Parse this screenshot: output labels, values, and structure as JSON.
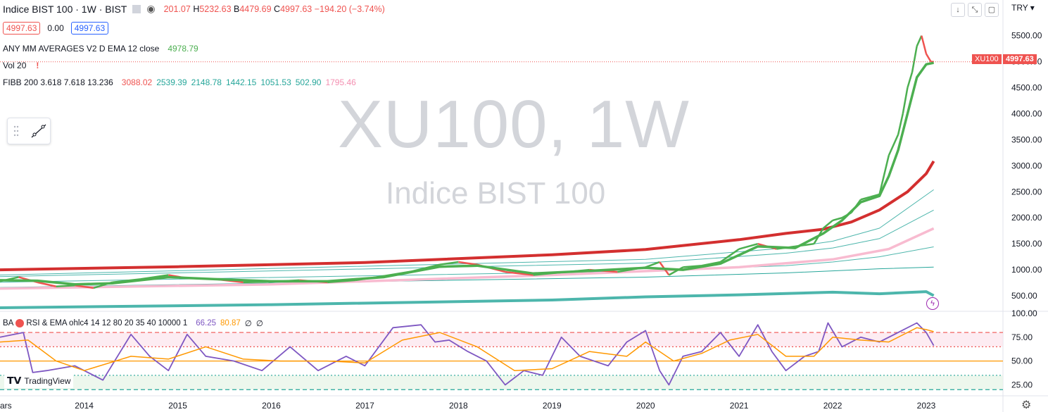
{
  "header": {
    "symbol": "Indice BIST 100 · 1W · BIST",
    "open": "201.07",
    "high_label": "H",
    "high": "5232.63",
    "low_label": "B",
    "low": "4479.69",
    "close_label": "C",
    "close": "4997.63",
    "change": "−194.20 (−3.74%)"
  },
  "price_row": {
    "bid": "4997.63",
    "spread": "0.00",
    "ask": "4997.63"
  },
  "indicators": {
    "ema_label": "ANY MM AVERAGES V2 D EMA 12 close",
    "ema_value": "4978.79",
    "vol_label": "Vol 20",
    "vol_warn": "!",
    "fib_label": "FIBB 200 3.618 7.618 13.236",
    "fib_values": [
      "3088.02",
      "2539.39",
      "2148.78",
      "1442.15",
      "1051.53",
      "502.90",
      "1795.46"
    ],
    "fib_colors": [
      "#ef5350",
      "#26a69a",
      "#26a69a",
      "#26a69a",
      "#26a69a",
      "#26a69a",
      "#f48fb1"
    ],
    "rsi_label": "BA",
    "rsi_name": "RSI & EMA ohlc4 14 12 80 20 35 40 10000 1",
    "rsi_value": "66.25",
    "rsi_ema": "80.87",
    "rsi_extra1": "∅",
    "rsi_extra2": "∅"
  },
  "watermark": {
    "symbol": "XU100, 1W",
    "name": "Indice BIST 100"
  },
  "currency": "TRY",
  "last_price_tag": {
    "symbol": "XU100",
    "value": "4997.63"
  },
  "branding": "TradingView",
  "colors": {
    "up": "#4caf50",
    "down": "#ef5350",
    "ema": "#4caf50",
    "sma200": "#d32f2f",
    "pink": "#f8bbd0",
    "teal": "#4db6ac"
  },
  "chart_data": {
    "type": "line",
    "price_axis": {
      "ticks": [
        500,
        1000,
        1500,
        2000,
        2500,
        3000,
        3500,
        4000,
        4500,
        5000,
        5500
      ],
      "tick_labels": [
        "500.00",
        "1000.00",
        "1500.00",
        "2000.00",
        "2500.00",
        "3000.00",
        "3500.00",
        "4000.00",
        "4500.00",
        "5000.00",
        "5500.00"
      ],
      "range": [
        230,
        5780
      ]
    },
    "rsi_axis": {
      "ticks": [
        25,
        50,
        75,
        100
      ],
      "tick_labels": [
        "25.00",
        "50.00",
        "75.00",
        "100.00"
      ],
      "range": [
        15,
        100
      ],
      "levels": [
        80,
        65,
        50,
        35,
        20
      ]
    },
    "x_axis": {
      "labels": [
        "ars",
        "2014",
        "2015",
        "2016",
        "2017",
        "2018",
        "2019",
        "2020",
        "2021",
        "2022",
        "2023"
      ],
      "values": [
        2013.0,
        2014.0,
        2015.0,
        2016.0,
        2017.0,
        2018.0,
        2019.0,
        2020.0,
        2021.0,
        2022.0,
        2023.0
      ],
      "range": [
        2013.1,
        2023.82
      ]
    },
    "price": {
      "x": [
        2013.1,
        2013.3,
        2013.5,
        2013.7,
        2013.9,
        2014.1,
        2014.3,
        2014.6,
        2014.9,
        2015.1,
        2015.4,
        2015.7,
        2016.0,
        2016.3,
        2016.6,
        2016.9,
        2017.2,
        2017.5,
        2017.8,
        2018.0,
        2018.2,
        2018.5,
        2018.8,
        2019.1,
        2019.4,
        2019.7,
        2020.0,
        2020.15,
        2020.25,
        2020.4,
        2020.6,
        2020.8,
        2021.0,
        2021.2,
        2021.4,
        2021.6,
        2021.8,
        2021.9,
        2022.0,
        2022.1,
        2022.2,
        2022.3,
        2022.4,
        2022.5,
        2022.6,
        2022.7,
        2022.75,
        2022.8,
        2022.85,
        2022.9,
        2022.95,
        2023.0,
        2023.05,
        2023.08
      ],
      "y": [
        780,
        860,
        760,
        680,
        700,
        650,
        760,
        820,
        900,
        840,
        820,
        760,
        770,
        800,
        760,
        800,
        880,
        970,
        1100,
        1150,
        1100,
        960,
        900,
        950,
        1000,
        960,
        1050,
        1150,
        900,
        1050,
        1080,
        1150,
        1400,
        1500,
        1400,
        1450,
        1500,
        1800,
        1950,
        2000,
        2100,
        2350,
        2400,
        2450,
        3200,
        3600,
        4000,
        4500,
        4800,
        5300,
        5500,
        5150,
        5000,
        4997.63
      ]
    },
    "ema12": {
      "x": [
        2013.1,
        2013.5,
        2013.9,
        2014.3,
        2014.9,
        2015.4,
        2016.0,
        2016.6,
        2017.2,
        2017.8,
        2018.2,
        2018.8,
        2019.4,
        2020.0,
        2020.4,
        2020.8,
        2021.2,
        2021.6,
        2021.9,
        2022.1,
        2022.3,
        2022.5,
        2022.6,
        2022.7,
        2022.8,
        2022.9,
        2023.0,
        2023.08
      ],
      "y": [
        800,
        790,
        720,
        740,
        860,
        820,
        780,
        780,
        860,
        1060,
        1080,
        930,
        980,
        1040,
        1000,
        1120,
        1450,
        1420,
        1700,
        1950,
        2300,
        2420,
        2800,
        3300,
        4000,
        4700,
        4950,
        4978.79
      ]
    },
    "sma200": {
      "x": [
        2013.1,
        2015.0,
        2017.0,
        2019.0,
        2020.0,
        2021.0,
        2021.5,
        2021.9,
        2022.2,
        2022.5,
        2022.8,
        2023.0,
        2023.08
      ],
      "y": [
        1000,
        1060,
        1140,
        1290,
        1390,
        1580,
        1700,
        1780,
        1920,
        2150,
        2500,
        2850,
        3088.02
      ]
    },
    "fib_bands": [
      {
        "name": "2539.39",
        "x": [
          2013.1,
          2020.0,
          2021.5,
          2022.0,
          2022.5,
          2023.08
        ],
        "y": [
          900,
          1200,
          1420,
          1550,
          1800,
          2539.39
        ]
      },
      {
        "name": "2148.78",
        "x": [
          2013.1,
          2020.0,
          2021.5,
          2022.0,
          2022.5,
          2023.08
        ],
        "y": [
          870,
          1130,
          1320,
          1420,
          1600,
          2148.78
        ]
      },
      {
        "name": "1442.15",
        "x": [
          2013.1,
          2020.0,
          2021.5,
          2022.0,
          2022.5,
          2023.08
        ],
        "y": [
          760,
          980,
          1080,
          1150,
          1250,
          1442.15
        ]
      },
      {
        "name": "1051.53",
        "x": [
          2013.1,
          2020.0,
          2021.5,
          2022.0,
          2022.5,
          2023.08
        ],
        "y": [
          660,
          860,
          940,
          980,
          1020,
          1051.53
        ]
      },
      {
        "name": "1795.46",
        "x": [
          2013.1,
          2016.0,
          2019.0,
          2021.0,
          2022.0,
          2022.6,
          2023.08
        ],
        "y": [
          640,
          720,
          900,
          1050,
          1200,
          1400,
          1795.46
        ]
      },
      {
        "name": "502.90",
        "x": [
          2013.1,
          2016.0,
          2019.0,
          2020.0,
          2021.0,
          2022.0,
          2022.5,
          2023.0,
          2023.08
        ],
        "y": [
          270,
          330,
          420,
          480,
          520,
          570,
          540,
          580,
          502.9
        ]
      }
    ],
    "rsi": {
      "x": [
        2013.1,
        2013.35,
        2013.45,
        2013.6,
        2013.9,
        2014.2,
        2014.5,
        2014.7,
        2014.9,
        2015.1,
        2015.3,
        2015.6,
        2015.9,
        2016.2,
        2016.5,
        2016.8,
        2017.0,
        2017.3,
        2017.6,
        2017.75,
        2017.9,
        2018.1,
        2018.3,
        2018.5,
        2018.7,
        2018.9,
        2019.1,
        2019.3,
        2019.6,
        2019.8,
        2020.0,
        2020.15,
        2020.25,
        2020.4,
        2020.6,
        2020.8,
        2021.0,
        2021.2,
        2021.35,
        2021.5,
        2021.7,
        2021.85,
        2021.95,
        2022.1,
        2022.3,
        2022.5,
        2022.7,
        2022.9,
        2023.0,
        2023.08
      ],
      "y": [
        75,
        80,
        38,
        40,
        45,
        30,
        78,
        55,
        40,
        78,
        55,
        50,
        40,
        65,
        40,
        55,
        45,
        85,
        88,
        70,
        72,
        60,
        50,
        25,
        40,
        35,
        75,
        55,
        45,
        70,
        82,
        40,
        25,
        55,
        60,
        80,
        55,
        88,
        60,
        40,
        55,
        60,
        90,
        65,
        75,
        70,
        80,
        90,
        80,
        66.25
      ]
    },
    "rsi_ema": {
      "x": [
        2013.1,
        2013.4,
        2013.7,
        2014.0,
        2014.5,
        2014.9,
        2015.3,
        2015.7,
        2016.1,
        2016.6,
        2017.0,
        2017.4,
        2017.8,
        2018.2,
        2018.6,
        2019.0,
        2019.4,
        2019.8,
        2020.0,
        2020.3,
        2020.6,
        2020.9,
        2021.2,
        2021.5,
        2021.8,
        2022.0,
        2022.3,
        2022.6,
        2022.9,
        2023.0,
        2023.08
      ],
      "y": [
        70,
        72,
        50,
        40,
        55,
        52,
        65,
        52,
        50,
        50,
        48,
        72,
        80,
        65,
        40,
        42,
        60,
        55,
        70,
        50,
        58,
        72,
        78,
        55,
        55,
        75,
        72,
        70,
        85,
        83,
        80.87
      ]
    }
  }
}
